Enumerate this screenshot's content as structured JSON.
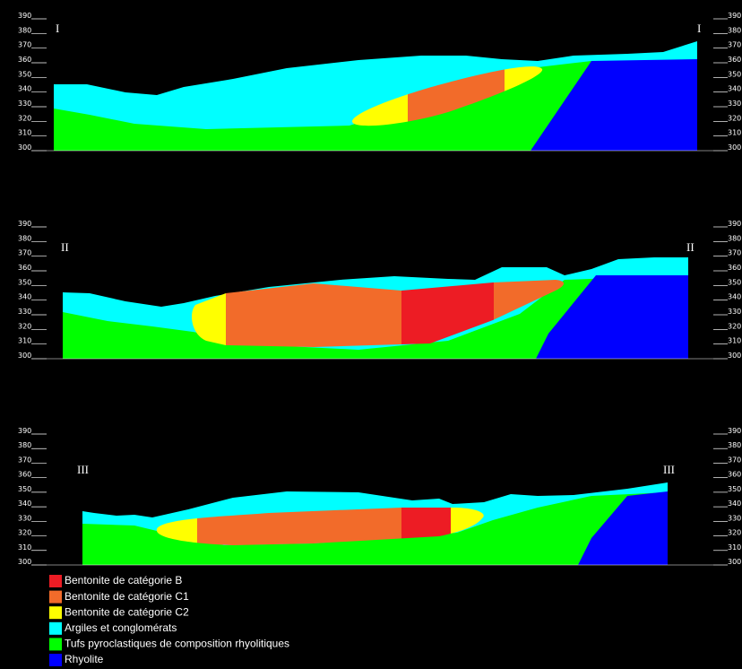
{
  "axis_ticks": [
    300,
    310,
    320,
    330,
    340,
    350,
    360,
    370,
    380,
    390
  ],
  "sections": [
    {
      "labels": [
        "I",
        "I"
      ]
    },
    {
      "labels": [
        "II",
        "II"
      ]
    },
    {
      "labels": [
        "III",
        "III"
      ]
    }
  ],
  "legend": [
    {
      "label": "Bentonite de catégorie B",
      "color": "#ed1c24"
    },
    {
      "label": "Bentonite de catégorie C1",
      "color": "#f26b2a"
    },
    {
      "label": "Bentonite de catégorie C2",
      "color": "#ffff00"
    },
    {
      "label": "Argiles et conglomérats",
      "color": "#00ffff"
    },
    {
      "label": "Tufs pyroclastiques de composition rhyolitiques",
      "color": "#00ff00"
    },
    {
      "label": "Rhyolite",
      "color": "#0000ff"
    }
  ]
}
